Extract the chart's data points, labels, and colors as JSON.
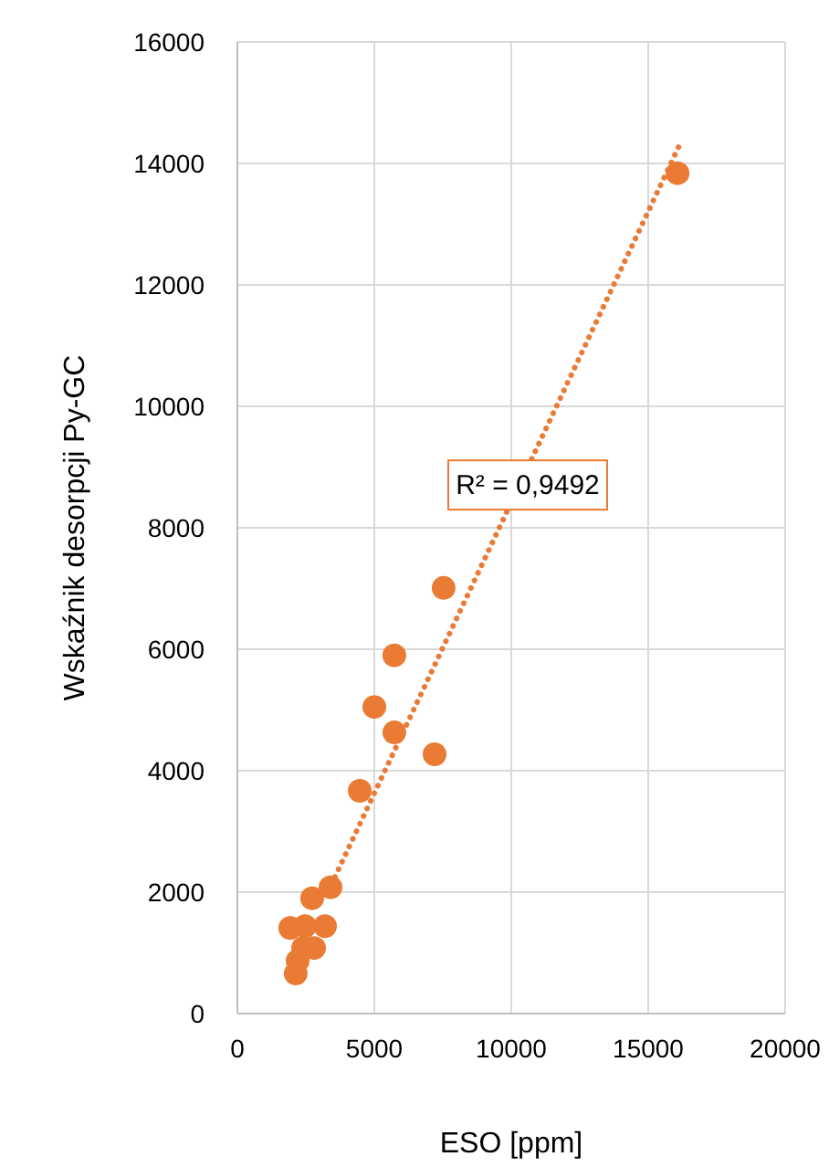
{
  "chart_data": {
    "type": "scatter",
    "xlabel": "ESO [ppm]",
    "ylabel": "Wskaźnik desorpcji Py-GC",
    "xlim": [
      0,
      20000
    ],
    "ylim": [
      0,
      16000
    ],
    "xticks": [
      0,
      5000,
      10000,
      15000,
      20000
    ],
    "yticks": [
      0,
      2000,
      4000,
      6000,
      8000,
      10000,
      12000,
      14000,
      16000
    ],
    "grid": true,
    "marker": "circle",
    "annotations": [
      "R² = 0,9492"
    ],
    "series": [
      {
        "color": "#e97b34",
        "x": [
          2130,
          2200,
          2400,
          2800,
          1930,
          2470,
          3200,
          2730,
          3400,
          4470,
          7200,
          5730,
          7530,
          5730,
          5000,
          16070
        ],
        "values": [
          660,
          870,
          1080,
          1080,
          1410,
          1440,
          1440,
          1900,
          2080,
          3670,
          4270,
          4630,
          7010,
          5900,
          5050,
          13840
        ]
      },
      {
        "type": "line",
        "line_style": "dotted",
        "marker": "none",
        "color": "#e97b34",
        "x": [
          3300,
          16200
        ],
        "values": [
          2000,
          14360
        ]
      }
    ]
  }
}
